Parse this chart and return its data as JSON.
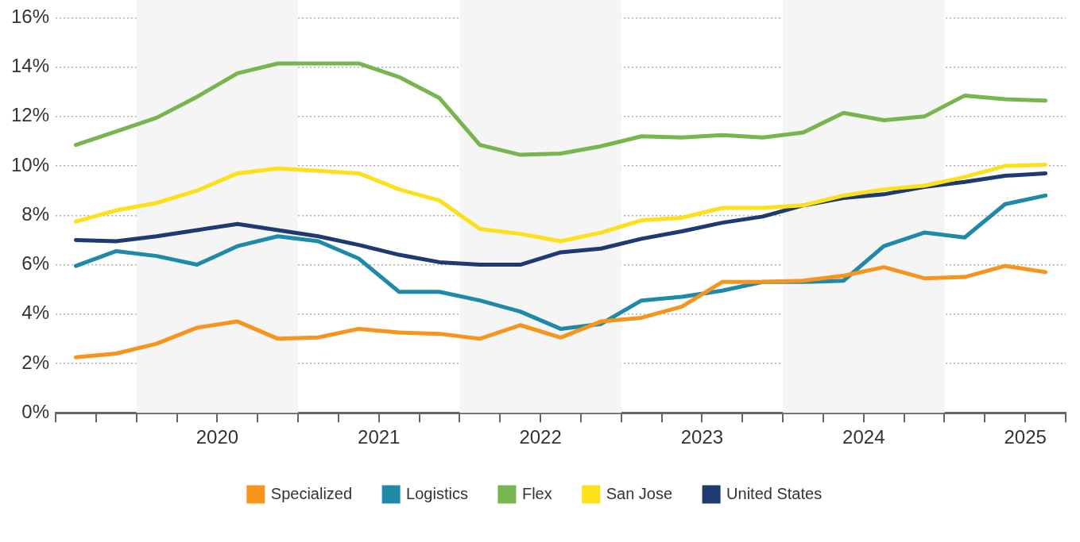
{
  "chart_data": {
    "type": "line",
    "x": [
      2019.625,
      2019.875,
      2020.125,
      2020.375,
      2020.625,
      2020.875,
      2021.125,
      2021.375,
      2021.625,
      2021.875,
      2022.125,
      2022.375,
      2022.625,
      2022.875,
      2023.125,
      2023.375,
      2023.625,
      2023.875,
      2024.125,
      2024.375,
      2024.625,
      2024.875,
      2025.125,
      2025.375,
      2025.625
    ],
    "series": [
      {
        "name": "Specialized",
        "color": "#f7941d",
        "values": [
          2.25,
          2.4,
          2.8,
          3.45,
          3.7,
          3.0,
          3.05,
          3.4,
          3.25,
          3.2,
          3.0,
          3.55,
          3.05,
          3.7,
          3.85,
          4.3,
          5.3,
          5.3,
          5.35,
          5.55,
          5.9,
          5.45,
          5.5,
          5.95,
          5.7
        ]
      },
      {
        "name": "Logistics",
        "color": "#1e8aa8",
        "values": [
          5.95,
          6.55,
          6.35,
          6.0,
          6.75,
          7.15,
          6.95,
          6.25,
          4.9,
          4.9,
          4.55,
          4.1,
          3.4,
          3.6,
          4.55,
          4.7,
          4.95,
          5.3,
          5.3,
          5.35,
          6.75,
          7.3,
          7.1,
          8.45,
          8.8
        ]
      },
      {
        "name": "Flex",
        "color": "#78b54e",
        "values": [
          10.85,
          11.4,
          11.95,
          12.8,
          13.75,
          14.15,
          14.15,
          14.15,
          13.6,
          12.75,
          10.85,
          10.45,
          10.5,
          10.8,
          11.2,
          11.15,
          11.25,
          11.15,
          11.35,
          12.15,
          11.85,
          12.0,
          12.85,
          12.7,
          12.65
        ]
      },
      {
        "name": "San Jose",
        "color": "#fce01a",
        "values": [
          7.75,
          8.2,
          8.5,
          9.0,
          9.7,
          9.9,
          9.8,
          9.7,
          9.05,
          8.6,
          7.45,
          7.25,
          6.95,
          7.3,
          7.8,
          7.9,
          8.3,
          8.3,
          8.4,
          8.8,
          9.05,
          9.2,
          9.55,
          10.0,
          10.05
        ]
      },
      {
        "name": "United States",
        "color": "#1f3a70",
        "values": [
          7.0,
          6.95,
          7.15,
          7.4,
          7.65,
          7.4,
          7.15,
          6.8,
          6.4,
          6.1,
          6.0,
          6.0,
          6.5,
          6.65,
          7.05,
          7.35,
          7.7,
          7.95,
          8.4,
          8.7,
          8.85,
          9.15,
          9.35,
          9.6,
          9.7
        ]
      }
    ],
    "xlim": [
      2019.5,
      2025.75
    ],
    "xticks": [
      {
        "value": 2019.5,
        "label": null
      },
      {
        "value": 2019.75,
        "label": null
      },
      {
        "value": 2020,
        "label": null
      },
      {
        "value": 2020.25,
        "label": null
      },
      {
        "value": 2020.5,
        "label": "2020"
      },
      {
        "value": 2020.75,
        "label": null
      },
      {
        "value": 2021,
        "label": null
      },
      {
        "value": 2021.25,
        "label": null
      },
      {
        "value": 2021.5,
        "label": "2021"
      },
      {
        "value": 2021.75,
        "label": null
      },
      {
        "value": 2022,
        "label": null
      },
      {
        "value": 2022.25,
        "label": null
      },
      {
        "value": 2022.5,
        "label": "2022"
      },
      {
        "value": 2022.75,
        "label": null
      },
      {
        "value": 2023,
        "label": null
      },
      {
        "value": 2023.25,
        "label": null
      },
      {
        "value": 2023.5,
        "label": "2023"
      },
      {
        "value": 2023.75,
        "label": null
      },
      {
        "value": 2024,
        "label": null
      },
      {
        "value": 2024.25,
        "label": null
      },
      {
        "value": 2024.5,
        "label": "2024"
      },
      {
        "value": 2024.75,
        "label": null
      },
      {
        "value": 2025,
        "label": null
      },
      {
        "value": 2025.25,
        "label": null
      },
      {
        "value": 2025.5,
        "label": "2025"
      },
      {
        "value": 2025.75,
        "label": null
      }
    ],
    "ylim": [
      0,
      16
    ],
    "yticks": [
      {
        "value": 0,
        "label": "0%"
      },
      {
        "value": 2,
        "label": "2%"
      },
      {
        "value": 4,
        "label": "4%"
      },
      {
        "value": 6,
        "label": "6%"
      },
      {
        "value": 8,
        "label": "8%"
      },
      {
        "value": 10,
        "label": "10%"
      },
      {
        "value": 12,
        "label": "12%"
      },
      {
        "value": 14,
        "label": "14%"
      },
      {
        "value": 16,
        "label": "16%"
      }
    ],
    "bands": [
      {
        "axis": "x",
        "from": 2020,
        "to": 2021,
        "color": "#f5f5f5"
      },
      {
        "axis": "x",
        "from": 2022,
        "to": 2023,
        "color": "#f5f5f5"
      },
      {
        "axis": "x",
        "from": 2024,
        "to": 2025,
        "color": "#f5f5f5"
      }
    ],
    "grid": "y",
    "legend": "bottom",
    "marker": "none",
    "line_style": "solid"
  }
}
